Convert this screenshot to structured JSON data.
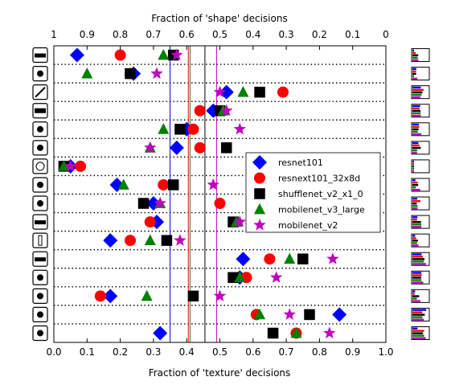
{
  "chart_data": {
    "type": "scatter",
    "top_axis": {
      "label": "Fraction of 'shape' decisions",
      "ticks": [
        1,
        0.9,
        0.8,
        0.7,
        0.6,
        0.5,
        0.4,
        0.3,
        0.2,
        0.1,
        0
      ],
      "tick_labels": [
        "1",
        "0.9",
        "0.8",
        "0.7",
        "0.6",
        "0.5",
        "0.4",
        "0.3",
        "0.2",
        "0.1",
        "0"
      ],
      "reversed": true
    },
    "xlabel": "Fraction of 'texture' decisions",
    "xlim": [
      0.0,
      1.0
    ],
    "xticks": [
      0.0,
      0.1,
      0.2,
      0.3,
      0.4,
      0.5,
      0.6,
      0.7,
      0.8,
      0.9,
      1.0
    ],
    "xtick_labels": [
      "0.0",
      "0.1",
      "0.2",
      "0.3",
      "0.4",
      "0.5",
      "0.6",
      "0.7",
      "0.8",
      "0.9",
      "1.0"
    ],
    "categories": [
      "truck",
      "oven",
      "knife",
      "keyboard",
      "elephant",
      "dog",
      "clock",
      "chair",
      "cat",
      "car",
      "bottle",
      "boat",
      "bird",
      "bicycle",
      "bear",
      "airplane"
    ],
    "grid": "dotted horizontal row separators",
    "legend_position": "center-right",
    "series": [
      {
        "name": "resnet101",
        "marker": "diamond",
        "color": "#0000ff",
        "values": [
          0.07,
          0.24,
          0.52,
          0.48,
          0.4,
          0.37,
          0.05,
          0.19,
          0.3,
          0.31,
          0.17,
          0.57,
          0.56,
          0.17,
          0.86,
          0.32
        ]
      },
      {
        "name": "resnext101_32x8d",
        "marker": "circle",
        "color": "#ff0000",
        "values": [
          0.2,
          0.23,
          0.69,
          0.44,
          0.42,
          0.44,
          0.08,
          0.33,
          0.5,
          0.29,
          0.23,
          0.65,
          0.58,
          0.14,
          0.61,
          0.73
        ]
      },
      {
        "name": "shufflenet_v2_x1_0",
        "marker": "square",
        "color": "#000000",
        "values": [
          0.36,
          0.23,
          0.62,
          0.5,
          0.38,
          0.52,
          0.03,
          0.36,
          0.27,
          0.54,
          0.34,
          0.75,
          0.54,
          0.42,
          0.77,
          0.66
        ]
      },
      {
        "name": "mobilenet_v3_large",
        "marker": "triangle",
        "color": "#008000",
        "values": [
          0.33,
          0.1,
          0.57,
          0.51,
          0.33,
          0.29,
          0.03,
          0.21,
          0.32,
          0.55,
          0.29,
          0.71,
          0.56,
          0.28,
          0.62,
          0.73
        ]
      },
      {
        "name": "mobilenet_v2",
        "marker": "star",
        "color": "#bf00bf",
        "values": [
          0.37,
          0.31,
          0.5,
          0.52,
          0.56,
          0.29,
          0.05,
          0.48,
          0.32,
          0.56,
          0.38,
          0.84,
          0.67,
          0.5,
          0.71,
          0.83
        ]
      }
    ],
    "mean_lines": [
      {
        "x": 0.35,
        "color": "#0000ff"
      },
      {
        "x": 0.405,
        "color": "#ff0000"
      },
      {
        "x": 0.455,
        "color": "#000000"
      },
      {
        "x": 0.41,
        "color": "#008000"
      },
      {
        "x": 0.49,
        "color": "#bf00bf"
      }
    ]
  }
}
